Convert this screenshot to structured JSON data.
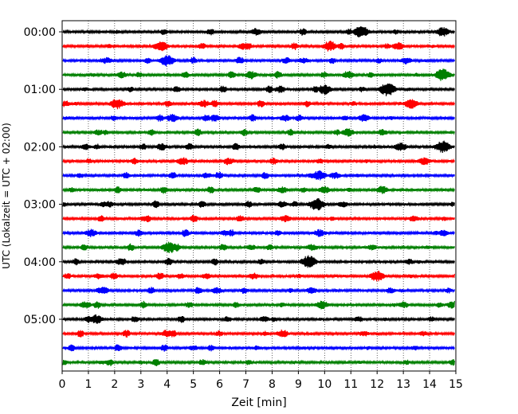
{
  "chart_data": {
    "type": "line",
    "title": "",
    "xlabel": "Zeit  [min]",
    "ylabel": "UTC (Lokalzeit = UTC + 02:00)",
    "xlim": [
      0,
      15
    ],
    "x_ticks": [
      0,
      1,
      2,
      3,
      4,
      5,
      6,
      7,
      8,
      9,
      10,
      11,
      12,
      13,
      14,
      15
    ],
    "x_tick_labels": [
      "0",
      "1",
      "2",
      "3",
      "4",
      "5",
      "6",
      "7",
      "8",
      "9",
      "10",
      "11",
      "12",
      "13",
      "14",
      "15"
    ],
    "grid": "vertical dotted",
    "trace_interval_min": 15,
    "trace_colors": [
      "#000000",
      "#ff0000",
      "#0000ff",
      "#008000"
    ],
    "y_tick_labels": [
      "00:00",
      "01:00",
      "02:00",
      "03:00",
      "04:00",
      "05:00"
    ],
    "series": [
      {
        "start": "00:00",
        "color": "#000000",
        "events": [
          [
            7.4,
            0.55
          ],
          [
            11.4,
            0.9
          ],
          [
            14.5,
            0.7
          ]
        ]
      },
      {
        "start": "00:15",
        "color": "#ff0000",
        "events": [
          [
            3.8,
            0.7
          ],
          [
            6.9,
            0.5
          ],
          [
            10.2,
            0.8
          ],
          [
            12.8,
            0.6
          ]
        ]
      },
      {
        "start": "00:30",
        "color": "#0000ff",
        "events": [
          [
            4.0,
            0.85
          ],
          [
            1.7,
            0.5
          ],
          [
            9.2,
            0.45
          ],
          [
            13.1,
            0.55
          ]
        ]
      },
      {
        "start": "00:45",
        "color": "#008000",
        "events": [
          [
            2.3,
            0.5
          ],
          [
            7.2,
            0.6
          ],
          [
            10.9,
            0.6
          ],
          [
            14.5,
            0.9
          ]
        ]
      },
      {
        "start": "01:00",
        "color": "#000000",
        "events": [
          [
            10.0,
            0.75
          ],
          [
            12.4,
            1.0
          ],
          [
            8.3,
            0.55
          ]
        ]
      },
      {
        "start": "01:15",
        "color": "#ff0000",
        "events": [
          [
            2.1,
            0.8
          ],
          [
            5.4,
            0.55
          ],
          [
            13.3,
            0.75
          ],
          [
            0.1,
            0.5
          ]
        ]
      },
      {
        "start": "01:30",
        "color": "#0000ff",
        "events": [
          [
            4.2,
            0.6
          ],
          [
            8.5,
            0.5
          ],
          [
            11.5,
            0.55
          ],
          [
            5.8,
            0.55
          ]
        ]
      },
      {
        "start": "01:45",
        "color": "#008000",
        "events": [
          [
            1.4,
            0.45
          ],
          [
            10.9,
            0.6
          ],
          [
            12.2,
            0.5
          ]
        ]
      },
      {
        "start": "02:00",
        "color": "#000000",
        "events": [
          [
            3.8,
            0.55
          ],
          [
            12.9,
            0.65
          ],
          [
            14.5,
            0.95
          ],
          [
            0.9,
            0.45
          ]
        ]
      },
      {
        "start": "02:15",
        "color": "#ff0000",
        "events": [
          [
            4.6,
            0.6
          ],
          [
            6.4,
            0.45
          ],
          [
            13.8,
            0.6
          ]
        ]
      },
      {
        "start": "02:30",
        "color": "#0000ff",
        "events": [
          [
            9.8,
            0.75
          ],
          [
            5.5,
            0.45
          ],
          [
            10.4,
            0.5
          ]
        ]
      },
      {
        "start": "02:45",
        "color": "#008000",
        "events": [
          [
            8.4,
            0.5
          ],
          [
            12.2,
            0.6
          ],
          [
            10.0,
            0.55
          ]
        ]
      },
      {
        "start": "03:00",
        "color": "#000000",
        "events": [
          [
            9.7,
            0.95
          ],
          [
            1.6,
            0.45
          ],
          [
            8.4,
            0.5
          ],
          [
            10.7,
            0.45
          ]
        ]
      },
      {
        "start": "03:15",
        "color": "#ff0000",
        "events": [
          [
            8.5,
            0.55
          ],
          [
            13.4,
            0.45
          ],
          [
            3.1,
            0.4
          ]
        ]
      },
      {
        "start": "03:30",
        "color": "#0000ff",
        "events": [
          [
            1.1,
            0.6
          ],
          [
            9.8,
            0.55
          ],
          [
            6.2,
            0.45
          ],
          [
            14.5,
            0.5
          ]
        ]
      },
      {
        "start": "03:45",
        "color": "#008000",
        "events": [
          [
            4.1,
            0.9
          ],
          [
            9.5,
            0.5
          ],
          [
            11.8,
            0.45
          ],
          [
            7.2,
            0.45
          ]
        ]
      },
      {
        "start": "04:00",
        "color": "#000000",
        "events": [
          [
            9.4,
            0.95
          ],
          [
            2.2,
            0.5
          ],
          [
            13.2,
            0.45
          ]
        ]
      },
      {
        "start": "04:15",
        "color": "#ff0000",
        "events": [
          [
            12.0,
            0.8
          ],
          [
            7.3,
            0.5
          ],
          [
            4.5,
            0.45
          ],
          [
            1.4,
            0.45
          ]
        ]
      },
      {
        "start": "04:30",
        "color": "#0000ff",
        "events": [
          [
            1.5,
            0.55
          ],
          [
            5.9,
            0.5
          ],
          [
            9.5,
            0.5
          ],
          [
            12.5,
            0.45
          ]
        ]
      },
      {
        "start": "04:45",
        "color": "#008000",
        "events": [
          [
            0.9,
            0.55
          ],
          [
            9.9,
            0.65
          ],
          [
            13.0,
            0.5
          ],
          [
            14.9,
            0.6
          ]
        ]
      },
      {
        "start": "05:00",
        "color": "#000000",
        "events": [
          [
            1.3,
            0.7
          ],
          [
            7.7,
            0.45
          ],
          [
            11.3,
            0.45
          ]
        ]
      },
      {
        "start": "05:15",
        "color": "#ff0000",
        "events": [
          [
            4.0,
            0.6
          ],
          [
            8.4,
            0.6
          ],
          [
            11.5,
            0.45
          ]
        ]
      },
      {
        "start": "05:30",
        "color": "#0000ff",
        "events": [
          [
            5.0,
            0.4
          ]
        ]
      },
      {
        "start": "05:45",
        "color": "#008000",
        "events": [
          [
            1.5,
            0.35
          ],
          [
            3.0,
            0.3
          ]
        ]
      }
    ]
  }
}
